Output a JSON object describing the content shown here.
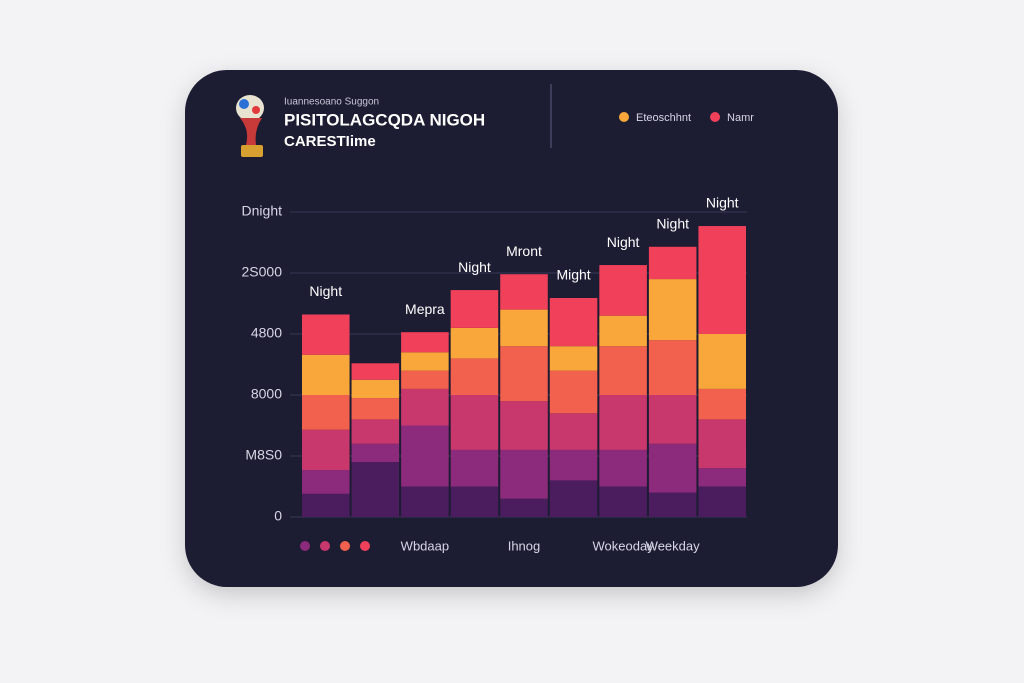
{
  "chart_data": {
    "type": "stacked_bar",
    "subtitle": "Iuannesoano Suggon",
    "title": "PISITOLAGCQDA NIGOH",
    "title_line2": "CARESTIime",
    "categories": [
      null,
      null,
      "Wbdaap",
      null,
      "Ihnog",
      null,
      "Wokeoday",
      "Weekday",
      null
    ],
    "annotations": [
      "Night",
      null,
      "Mepra",
      "Night",
      "Mront",
      "Might",
      "Night",
      "Night",
      "Night"
    ],
    "ylim": [
      0,
      5
    ],
    "yticks": [
      0,
      {
        "value": 1,
        "label": "M8S0"
      },
      {
        "value": 2,
        "label": "8000"
      },
      {
        "value": 3,
        "label": "4800"
      },
      {
        "value": 4,
        "label": "2S000"
      },
      {
        "value": 5,
        "label": "Dnight"
      }
    ],
    "grid": true,
    "series": [
      {
        "color": "#4b1c5e",
        "values": [
          0.38,
          0.9,
          0.5,
          0.5,
          0.3,
          0.6,
          0.5,
          0.4,
          0.5
        ]
      },
      {
        "color": "#8c2a7c",
        "values": [
          0.39,
          0.3,
          1.0,
          0.6,
          0.8,
          0.5,
          0.6,
          0.8,
          0.3
        ]
      },
      {
        "color": "#c9386c",
        "values": [
          0.66,
          0.4,
          0.6,
          0.9,
          0.8,
          0.6,
          0.9,
          0.8,
          0.8
        ]
      },
      {
        "color": "#f2604e",
        "values": [
          0.57,
          0.35,
          0.3,
          0.6,
          0.9,
          0.7,
          0.8,
          0.9,
          0.5
        ]
      },
      {
        "name": "Eteoschhnt",
        "color": "#f9a73a",
        "values": [
          0.66,
          0.3,
          0.3,
          0.5,
          0.6,
          0.4,
          0.5,
          1.0,
          0.9
        ]
      },
      {
        "name": "Namr",
        "color": "#f0405a",
        "values": [
          0.66,
          0.27,
          0.33,
          0.62,
          0.58,
          0.79,
          0.83,
          0.53,
          1.77
        ]
      }
    ]
  }
}
